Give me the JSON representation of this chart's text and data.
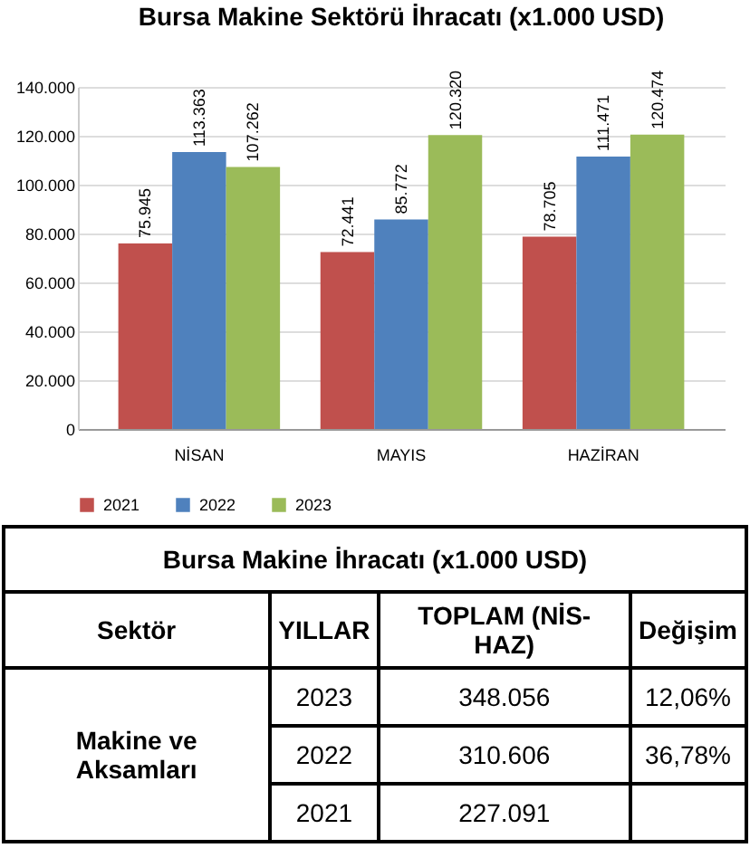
{
  "chart_data": [
    {
      "type": "bar",
      "title": "Bursa Makine Sektörü İhracatı (x1.000 USD)",
      "categories": [
        "NİSAN",
        "MAYIS",
        "HAZİRAN"
      ],
      "series": [
        {
          "name": "2021",
          "color": "#c0504d",
          "values": [
            75945,
            72441,
            78705
          ],
          "value_labels": [
            "75.945",
            "72.441",
            "78.705"
          ]
        },
        {
          "name": "2022",
          "color": "#4f81bd",
          "values": [
            113363,
            85772,
            111471
          ],
          "value_labels": [
            "113.363",
            "85.772",
            "111.471"
          ]
        },
        {
          "name": "2023",
          "color": "#9bbb59",
          "values": [
            107262,
            120320,
            120474
          ],
          "value_labels": [
            "107.262",
            "120.320",
            "120.474"
          ]
        }
      ],
      "ylim": [
        0,
        140000
      ],
      "yticks": [
        0,
        {
          "value": 20000,
          "label": "20.000"
        },
        {
          "value": 40000,
          "label": "40.000"
        },
        {
          "value": 60000,
          "label": "60.000"
        },
        {
          "value": 80000,
          "label": "80.000"
        },
        {
          "value": 100000,
          "label": "100.000"
        },
        {
          "value": 120000,
          "label": "120.000"
        },
        {
          "value": 140000,
          "label": "140.000"
        }
      ],
      "grid": "y",
      "legend": "bottom"
    },
    {
      "type": "other",
      "title": "Bursa Makine İhracatı (x1.000 USD)",
      "annotations": [
        "Sektör",
        "YILLAR",
        "TOPLAM (NİS-HAZ)",
        "Değişim",
        "Makine ve Aksamları",
        "2023",
        "348.056",
        "12,06%",
        "2022",
        "310.606",
        "36,78%",
        "2021",
        "227.091"
      ]
    }
  ]
}
